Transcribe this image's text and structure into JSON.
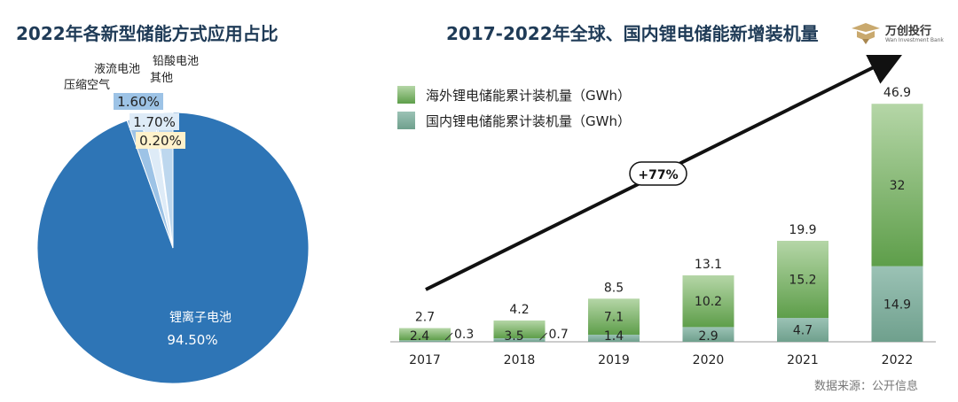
{
  "header": {
    "pie_title": "2022年各新型储能方式应用占比",
    "bar_title": "2017-2022年全球、国内锂电储能新增装机量"
  },
  "logo": {
    "name": "万创投行",
    "subtitle": "Wan Investment Bank"
  },
  "footer": {
    "source": "数据来源：公开信息"
  },
  "colors": {
    "pie_main": "#2e75b6",
    "pie_light1": "#9dc3e6",
    "pie_light2": "#bdd7ee",
    "pie_light3": "#deebf7",
    "overseas_bar": "#7fb46b",
    "domestic_bar": "#7fae9d",
    "arrow": "#111111"
  },
  "chart_data": [
    {
      "type": "pie",
      "title": "2022年各新型储能方式应用占比",
      "slices": [
        {
          "name": "锂离子电池",
          "value": 94.5,
          "label": "94.50%"
        },
        {
          "name": "压缩空气",
          "value": 1.6,
          "label": "1.60%"
        },
        {
          "name": "液流电池",
          "value": 1.7,
          "label": "1.70%"
        },
        {
          "name": "铅酸电池",
          "value": 0.2,
          "label": "0.20%"
        },
        {
          "name": "其他",
          "value": 2.0,
          "label": ""
        }
      ]
    },
    {
      "type": "bar",
      "stacked": true,
      "title": "2017-2022年全球、国内锂电储能新增装机量",
      "categories": [
        "2017",
        "2018",
        "2019",
        "2020",
        "2021",
        "2022"
      ],
      "series": [
        {
          "name": "国内锂电储能累计装机量（GWh）",
          "values": [
            0.3,
            0.7,
            1.4,
            2.9,
            4.7,
            14.9
          ]
        },
        {
          "name": "海外锂电储能累计装机量（GWh）",
          "values": [
            2.4,
            3.5,
            7.1,
            10.2,
            15.2,
            32.0
          ]
        }
      ],
      "totals": [
        2.7,
        4.2,
        8.5,
        13.1,
        19.9,
        46.9
      ],
      "legend": [
        "海外锂电储能累计装机量（GWh）",
        "国内锂电储能累计装机量（GWh）"
      ],
      "ylim": [
        0,
        52
      ],
      "annotation": "+77%"
    }
  ]
}
